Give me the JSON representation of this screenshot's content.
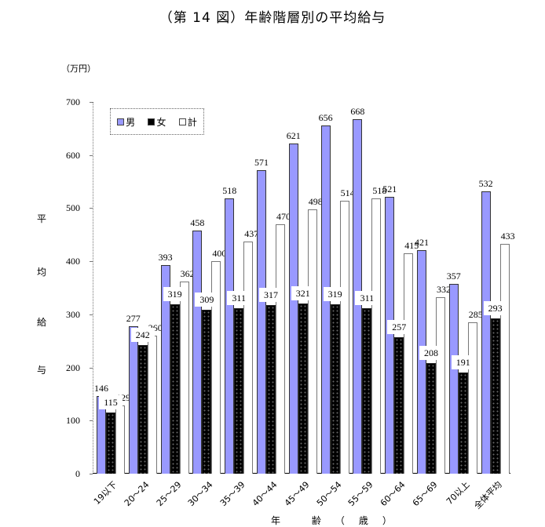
{
  "title": "（第 14 図）年齢階層別の平均給与",
  "unit_label": "（万円）",
  "ylabel_chars": [
    "平",
    "均",
    "給",
    "与"
  ],
  "xlabel": "年 齢（歳）",
  "legend": {
    "male": "男",
    "female": "女",
    "total": "計"
  },
  "colors": {
    "male": "#9999ff",
    "female": "#000000",
    "total": "#ffffff"
  },
  "yticks": [
    "0",
    "100",
    "200",
    "300",
    "400",
    "500",
    "600",
    "700"
  ],
  "chart_data": {
    "type": "bar",
    "title": "（第 14 図）年齢階層別の平均給与",
    "xlabel": "年齢（歳）",
    "ylabel": "平均給与（万円）",
    "ylim": [
      0,
      700
    ],
    "yticks": [
      0,
      100,
      200,
      300,
      400,
      500,
      600,
      700
    ],
    "grid": false,
    "legend_position": "top-left inside",
    "categories": [
      "19以下",
      "20～24",
      "25～29",
      "30～34",
      "35～39",
      "40～44",
      "45～49",
      "50～54",
      "55～59",
      "60～64",
      "65～69",
      "70以上",
      "全体平均"
    ],
    "series": [
      {
        "name": "男",
        "values": [
          146,
          277,
          393,
          458,
          518,
          571,
          621,
          656,
          668,
          521,
          421,
          357,
          532
        ]
      },
      {
        "name": "女",
        "values": [
          115,
          242,
          319,
          309,
          311,
          317,
          321,
          319,
          311,
          257,
          208,
          191,
          293
        ]
      },
      {
        "name": "計",
        "values": [
          129,
          260,
          362,
          400,
          437,
          470,
          498,
          514,
          518,
          415,
          332,
          285,
          433
        ]
      }
    ]
  }
}
